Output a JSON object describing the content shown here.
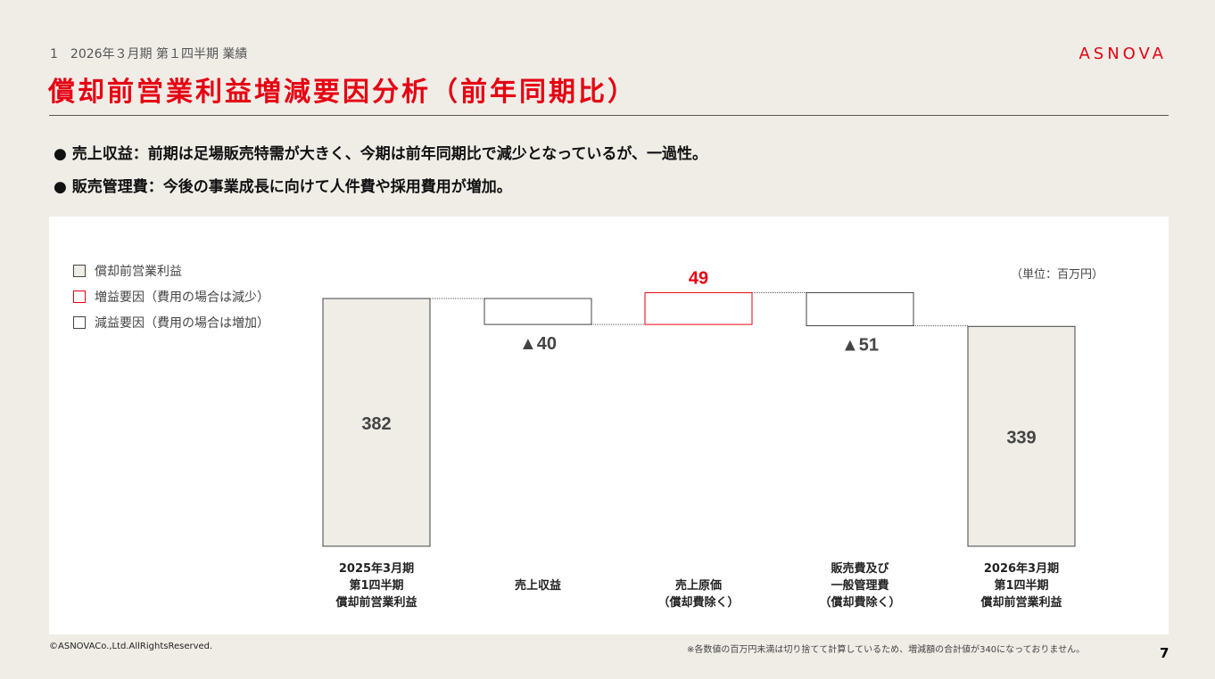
{
  "header": {
    "section": "1　2026年３月期 第１四半期 業績",
    "title": "償却前営業利益増減要因分析（前年同期比）",
    "logo": "ASNOVA"
  },
  "bullets": [
    "● 売上収益：前期は足場販売特需が大きく、今期は前年同期比で減少となっているが、一過性。",
    "● 販売管理費：今後の事業成長に向けて人件費や採用費用が増加。"
  ],
  "legend": [
    {
      "label": "償却前営業利益",
      "color": "#f0ede7",
      "border": "#444444"
    },
    {
      "label": "増益要因（費用の場合は減少）",
      "color": "#ffffff",
      "border": "#e60012"
    },
    {
      "label": "減益要因（費用の場合は増加）",
      "color": "#ffffff",
      "border": "#444444"
    }
  ],
  "unit": "（単位：百万円）",
  "chart_data": {
    "type": "waterfall",
    "categories": [
      "2025年3月期\n第1四半期\n償却前営業利益",
      "売上収益",
      "売上原価\n（償却費除く）",
      "販売費及び\n一般管理費\n（償却費除く）",
      "2026年3月期\n第1四半期\n償却前営業利益"
    ],
    "values": [
      382,
      -40,
      49,
      -51,
      339
    ],
    "kinds": [
      "total",
      "decrease",
      "increase",
      "decrease",
      "total"
    ],
    "data_labels": [
      "382",
      "▲40",
      "49",
      "▲51",
      "339"
    ]
  },
  "footer": {
    "copyright": "©ASNOVACo.,Ltd.AllRightsReserved.",
    "note": "※各数値の百万円未満は切り捨てて計算しているため、増減額の合計値が340になっておりません。",
    "page": "7"
  }
}
